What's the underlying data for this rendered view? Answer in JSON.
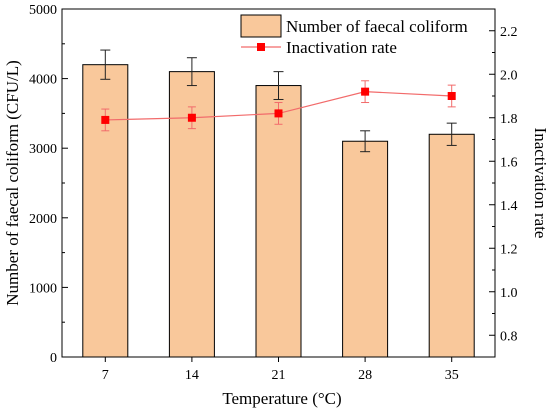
{
  "chart_data": {
    "type": "bar",
    "categories": [
      "7",
      "14",
      "21",
      "28",
      "35"
    ],
    "xlabel": "Temperature (°C)",
    "series": [
      {
        "name": "Number of faecal coliform",
        "type": "bar",
        "axis": "left",
        "values": [
          4200,
          4100,
          3900,
          3100,
          3200
        ],
        "errors": [
          210,
          200,
          200,
          150,
          160
        ],
        "color": "#f9c89b",
        "edge_color": "#000000"
      },
      {
        "name": "Inactivation rate",
        "type": "line",
        "axis": "right",
        "values": [
          1.79,
          1.8,
          1.82,
          1.92,
          1.9
        ],
        "errors": [
          0.05,
          0.05,
          0.05,
          0.05,
          0.05
        ],
        "color": "#ff0000",
        "line_color": "#f26b6b"
      }
    ],
    "y_left": {
      "label": "Number of faecal coliform (CFU/L)",
      "ylim": [
        0,
        5000
      ],
      "ticks": [
        0,
        1000,
        2000,
        3000,
        4000,
        5000
      ],
      "tick_labels": [
        "0",
        "1000",
        "2000",
        "3000",
        "4000",
        "5000"
      ]
    },
    "y_right": {
      "label": "Inactivation rate",
      "ylim": [
        0.7,
        2.3
      ],
      "ticks": [
        0.8,
        1.0,
        1.2,
        1.4,
        1.6,
        1.8,
        2.0,
        2.2
      ],
      "tick_labels": [
        "0.8",
        "1.0",
        "1.2",
        "1.4",
        "1.6",
        "1.8",
        "2.0",
        "2.2"
      ]
    },
    "legend_position": "top-right",
    "grid": false
  }
}
